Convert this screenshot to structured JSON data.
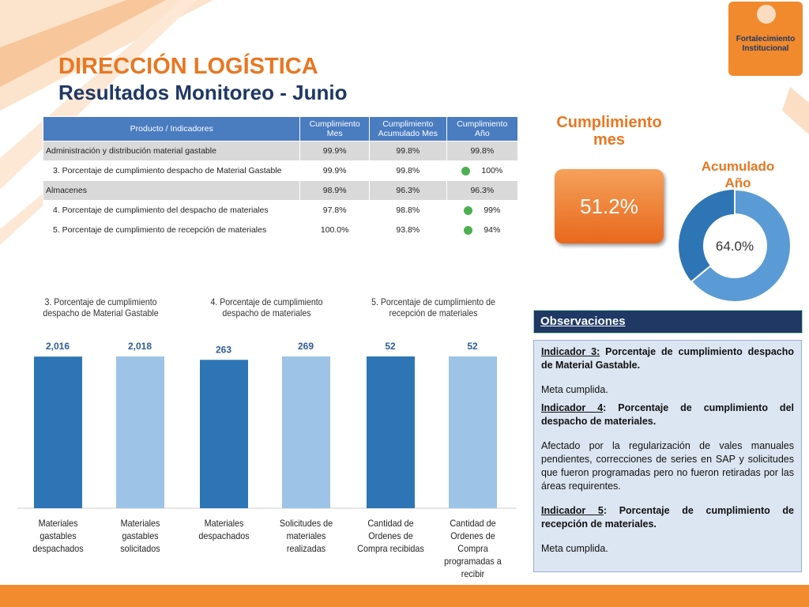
{
  "header": {
    "title": "DIRECCIÓN LOGÍSTICA",
    "subtitle": "Resultados Monitoreo - Junio"
  },
  "logo": {
    "lines": [
      "Fortalecimiento",
      "Institucional"
    ]
  },
  "table": {
    "columns": [
      "Producto / Indicadores",
      "Cumplimiento Mes",
      "Cumplimiento Acumulado Mes",
      "Cumplimiento Año"
    ],
    "rows": [
      {
        "cells": [
          "Administración y distribución material gastable",
          "99.9%",
          "99.8%",
          "99.8%"
        ],
        "group": true
      },
      {
        "cells": [
          "3. Porcentaje de cumplimiento despacho de Material Gastable",
          "99.9%",
          "99.8%",
          "100%"
        ],
        "group": false,
        "status_color": "#4caf50"
      },
      {
        "cells": [
          "Almacenes",
          "98.9%",
          "96.3%",
          "96.3%"
        ],
        "group": true
      },
      {
        "cells": [
          "4. Porcentaje de cumplimiento del despacho de materiales",
          "97.8%",
          "98.8%",
          "99%"
        ],
        "group": false,
        "status_color": "#4caf50"
      },
      {
        "cells": [
          "5. Porcentaje de cumplimiento de recepción de materiales",
          "100.0%",
          "93.8%",
          "94%"
        ],
        "group": false,
        "status_color": "#4caf50"
      }
    ]
  },
  "kpi": {
    "month_title": "Cumplimiento mes",
    "month_value": 51.2,
    "month_label": "51.2%"
  },
  "chart_data": [
    {
      "type": "bar",
      "title": "3. Porcentaje de cumplimiento despacho de Material Gastable",
      "categories": [
        "Materiales gastables despachados",
        "Materiales gastables solicitados"
      ],
      "values": [
        2016,
        2018
      ],
      "value_labels": [
        "2,016",
        "2,018"
      ],
      "colors": [
        "#2e75b6",
        "#9dc3e6"
      ]
    },
    {
      "type": "bar",
      "title": "4. Porcentaje de cumplimiento despacho de materiales",
      "categories": [
        "Materiales despachados",
        "Solicitudes de materiales realizadas"
      ],
      "values": [
        263,
        269
      ],
      "colors": [
        "#2e75b6",
        "#9dc3e6"
      ]
    },
    {
      "type": "bar",
      "title": "5. Porcentaje de cumplimiento de recepción de materiales",
      "categories": [
        "Cantidad de Ordenes de Compra recibidas",
        "Cantidad de Ordenes de Compra programadas a recibir"
      ],
      "values": [
        52,
        52
      ],
      "colors": [
        "#2e75b6",
        "#9dc3e6"
      ]
    },
    {
      "type": "pie",
      "title": "Acumulado Año",
      "values": [
        64.0
      ],
      "value_labels": [
        "64.0%"
      ],
      "colors": [
        "#5b9bd5",
        "#2e75b6"
      ]
    }
  ],
  "observations": {
    "title": "Observaciones",
    "items": [
      {
        "label": "Indicador 3:",
        "heading": " Porcentaje de cumplimiento despacho de Material Gastable.",
        "text": [
          "Meta cumplida."
        ]
      },
      {
        "label": "Indicador 4",
        "heading": ": Porcentaje de cumplimiento del despacho de materiales.",
        "text": [
          "Afectado por la regularización de vales manuales pendientes, correcciones de series en SAP y solicitudes que fueron programadas pero no fueron retiradas por las áreas requirentes."
        ]
      },
      {
        "label": "Indicador 5",
        "heading": ": Porcentaje de cumplimiento de recepción de materiales.",
        "text": [
          "Meta cumplida."
        ]
      }
    ]
  }
}
